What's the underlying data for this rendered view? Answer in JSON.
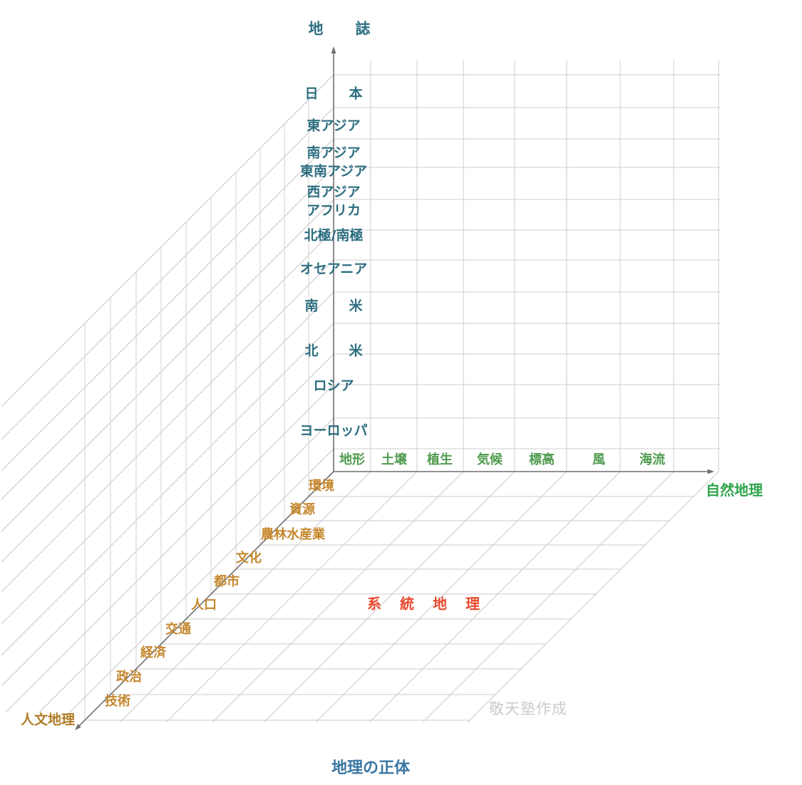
{
  "diagram_title": "地理の正体",
  "watermark": "敬天塾作成",
  "center_label": "系統地理",
  "axes": {
    "z": {
      "title": "地誌",
      "regions": [
        "日本",
        "東アジア",
        "南アジア",
        "東南アジア",
        "西アジア",
        "アフリカ",
        "北極/南極",
        "オセアニア",
        "南米",
        "北米",
        "ロシア",
        "ヨーロッパ"
      ]
    },
    "x": {
      "title": "自然地理",
      "categories": [
        "地形",
        "土壌",
        "植生",
        "気候",
        "標高",
        "風",
        "海流"
      ]
    },
    "y": {
      "title": "人文地理",
      "topics": [
        "環境",
        "資源",
        "農林水産業",
        "文化",
        "都市",
        "人口",
        "交通",
        "経済",
        "政治",
        "技術"
      ]
    }
  },
  "colors": {
    "region_text": "#2d6e80",
    "nature_text": "#4f9b4f",
    "nature_axis_text": "#2fa44c",
    "human_text": "#c5872c",
    "human_axis_text": "#b07b24",
    "center_text": "#e8492e",
    "caption_text": "#3a76a3",
    "watermark_text": "#cbcbcb",
    "axis_line": "#6f6f6f",
    "grid_line": "#cccccc"
  }
}
